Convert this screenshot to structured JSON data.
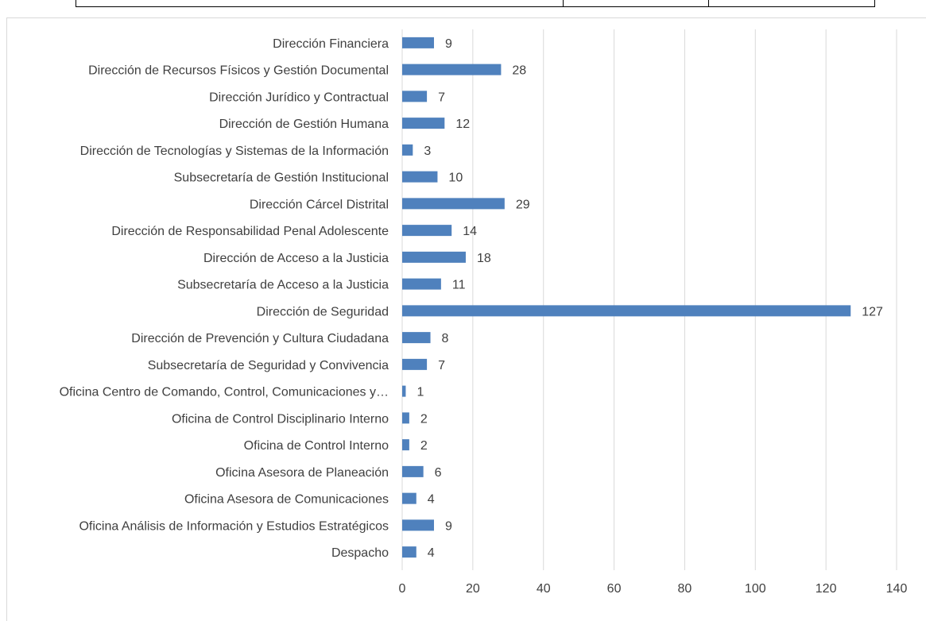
{
  "chart_data": {
    "type": "bar",
    "orientation": "horizontal",
    "title": "",
    "xlabel": "",
    "ylabel": "",
    "xlim": [
      0,
      140
    ],
    "x_ticks": [
      0,
      20,
      40,
      60,
      80,
      100,
      120,
      140
    ],
    "grid": "vertical",
    "legend": "none",
    "bar_color": "#4f81bd",
    "categories": [
      "Dirección Financiera",
      "Dirección de Recursos Físicos y Gestión Documental",
      "Dirección Jurídico y Contractual",
      "Dirección de Gestión Humana",
      "Dirección de Tecnologías y Sistemas de la Información",
      "Subsecretaría de Gestión Institucional",
      "Dirección Cárcel Distrital",
      "Dirección de Responsabilidad Penal Adolescente",
      "Dirección de Acceso a la Justicia",
      "Subsecretaría de Acceso a la Justicia",
      "Dirección de Seguridad",
      "Dirección de Prevención y Cultura Ciudadana",
      "Subsecretaría de Seguridad y Convivencia",
      "Oficina Centro de Comando, Control, Comunicaciones y…",
      "Oficina de Control Disciplinario Interno",
      "Oficina de Control Interno",
      "Oficina Asesora de Planeación",
      "Oficina Asesora de Comunicaciones",
      "Oficina Análisis de Información y Estudios Estratégicos",
      "Despacho"
    ],
    "values": [
      9,
      28,
      7,
      12,
      3,
      10,
      29,
      14,
      18,
      11,
      127,
      8,
      7,
      1,
      2,
      2,
      6,
      4,
      9,
      4
    ]
  }
}
